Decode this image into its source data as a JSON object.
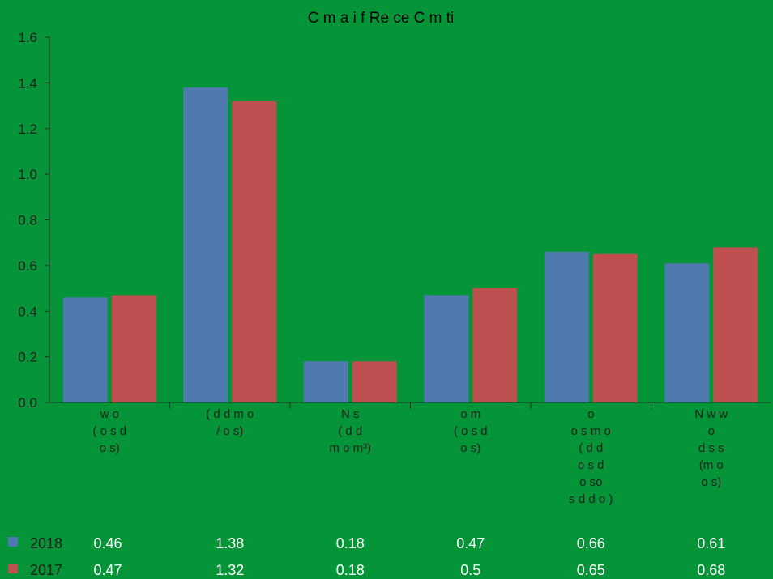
{
  "chart_data": {
    "type": "bar",
    "title": "C m a i f Re ce C m ti",
    "categories": [
      [
        "w o",
        "( o s d",
        "o s)"
      ],
      [
        "( d d m o",
        "/ o s)"
      ],
      [
        "N s",
        "( d d",
        "m o m³)"
      ],
      [
        "o m",
        "( o s d",
        "o s)"
      ],
      [
        "o",
        "o s m o",
        "( d d",
        "o s d",
        "o so",
        "s d d o )"
      ],
      [
        "N w w",
        "o",
        "d s s",
        "(m o",
        "o s)"
      ]
    ],
    "series": [
      {
        "name": "2018",
        "values": [
          0.46,
          1.38,
          0.18,
          0.47,
          0.66,
          0.61
        ],
        "labels": [
          "0.46",
          "1.38",
          "0.18",
          "0.47",
          "0.66",
          "0.61"
        ]
      },
      {
        "name": "2017",
        "values": [
          0.47,
          1.32,
          0.18,
          0.5,
          0.65,
          0.68
        ],
        "labels": [
          "0.47",
          "1.32",
          "0.18",
          "0.5",
          "0.65",
          "0.68"
        ]
      }
    ],
    "ylim": [
      0,
      1.6
    ],
    "yticks": [
      "0.0",
      "0.2",
      "0.4",
      "0.6",
      "0.8",
      "1.0",
      "1.2",
      "1.4",
      "1.6"
    ],
    "grid": false,
    "legend": "data-table-below",
    "colors": {
      "2018": "#4e7ab0",
      "2017": "#bf5052",
      "background": "#059437"
    }
  }
}
